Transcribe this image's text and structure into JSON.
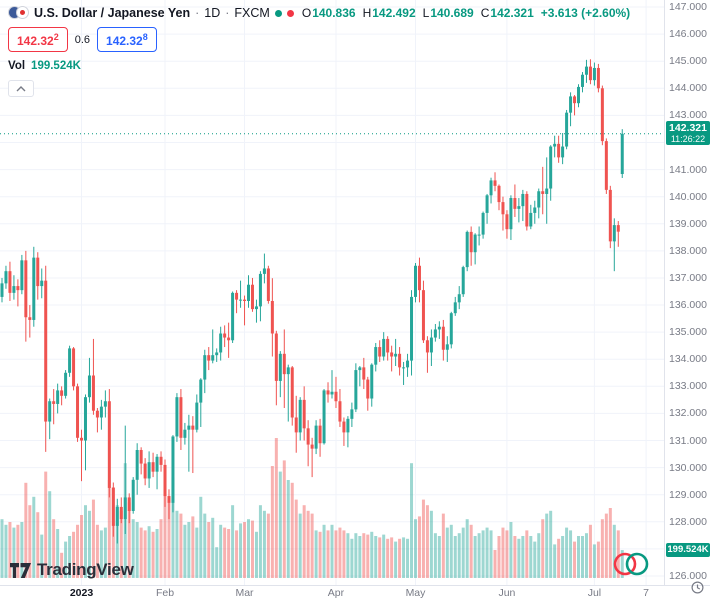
{
  "header": {
    "symbol_title": "U.S. Dollar / Japanese Yen",
    "separator": "·",
    "timeframe": "1D",
    "exchange": "FXCM",
    "ohlc": {
      "o_label": "O",
      "o": "140.836",
      "h_label": "H",
      "h": "142.492",
      "l_label": "L",
      "l": "140.689",
      "c_label": "C",
      "c": "142.321",
      "change": "+3.613 (+2.60%)"
    },
    "sell": {
      "main": "142.32",
      "sup": "2"
    },
    "spread": "0.6",
    "buy": {
      "main": "142.32",
      "sup": "8"
    },
    "vol_label": "Vol",
    "vol_value": "199.524K"
  },
  "badges": {
    "price": "142.321",
    "countdown": "11:26:22",
    "volume": "199.524K"
  },
  "logo": {
    "text": "TradingView"
  },
  "colors": {
    "up": "#26a69a",
    "down": "#ef5350",
    "up_text": "#089981",
    "sell": "#f23645",
    "buy": "#2962ff",
    "grid": "#f0f3fa",
    "axis_text": "#787b86",
    "badge": "#089981"
  },
  "chart_data": {
    "type": "candlestick",
    "title": "U.S. Dollar / Japanese Yen, 1D, FXCM",
    "price_axis": {
      "min": 126,
      "max": 147,
      "step": 1,
      "decimals": 3
    },
    "x_ticks": [
      {
        "i": 20,
        "label": "2023",
        "major": true
      },
      {
        "i": 41,
        "label": "Feb"
      },
      {
        "i": 61,
        "label": "Mar"
      },
      {
        "i": 84,
        "label": "Apr"
      },
      {
        "i": 104,
        "label": "May"
      },
      {
        "i": 127,
        "label": "Jun"
      },
      {
        "i": 149,
        "label": "Jul"
      },
      {
        "i": 162,
        "label": "7"
      }
    ],
    "right_margin_bars": 10,
    "current_price": 142.321,
    "countdown": "11:26:22",
    "last_volume_k": 199.524,
    "volume_unit": "K",
    "candles": [
      [
        136.3,
        137.0,
        136.1,
        136.8,
        420
      ],
      [
        136.8,
        137.45,
        136.6,
        137.25,
        380
      ],
      [
        137.25,
        137.6,
        136.15,
        136.45,
        400
      ],
      [
        136.45,
        137.1,
        136.2,
        136.7,
        360
      ],
      [
        136.7,
        136.95,
        135.95,
        136.55,
        380
      ],
      [
        136.55,
        137.85,
        136.4,
        137.65,
        400
      ],
      [
        137.65,
        138.0,
        134.65,
        135.55,
        680
      ],
      [
        135.55,
        136.0,
        134.8,
        135.45,
        520
      ],
      [
        135.45,
        138.15,
        135.2,
        137.75,
        580
      ],
      [
        137.75,
        137.95,
        136.2,
        136.7,
        470
      ],
      [
        136.7,
        137.35,
        136.25,
        136.9,
        310
      ],
      [
        136.9,
        137.45,
        130.58,
        131.7,
        760
      ],
      [
        131.7,
        132.55,
        131.05,
        132.45,
        620
      ],
      [
        132.45,
        132.9,
        131.6,
        132.35,
        420
      ],
      [
        132.35,
        133.1,
        132.0,
        132.85,
        350
      ],
      [
        132.85,
        133.0,
        132.3,
        132.65,
        180
      ],
      [
        132.65,
        133.6,
        132.55,
        133.5,
        260
      ],
      [
        133.5,
        134.5,
        133.35,
        134.4,
        300
      ],
      [
        134.4,
        134.45,
        132.85,
        133.0,
        330
      ],
      [
        133.0,
        133.1,
        130.95,
        131.1,
        380
      ],
      [
        131.1,
        131.4,
        129.5,
        131.0,
        450
      ],
      [
        131.0,
        132.7,
        129.9,
        132.6,
        520
      ],
      [
        132.6,
        134.05,
        132.4,
        133.4,
        480
      ],
      [
        133.4,
        134.75,
        131.95,
        132.1,
        560
      ],
      [
        132.1,
        132.2,
        131.3,
        131.85,
        380
      ],
      [
        131.85,
        132.5,
        131.4,
        132.25,
        340
      ],
      [
        132.25,
        132.85,
        131.85,
        132.45,
        360
      ],
      [
        132.45,
        132.9,
        128.9,
        129.25,
        700
      ],
      [
        129.25,
        129.45,
        127.45,
        127.85,
        650
      ],
      [
        127.85,
        128.85,
        127.2,
        128.55,
        520
      ],
      [
        128.55,
        128.9,
        127.95,
        128.1,
        480
      ],
      [
        128.1,
        131.55,
        127.55,
        128.9,
        820
      ],
      [
        128.9,
        129.05,
        127.95,
        128.4,
        540
      ],
      [
        128.4,
        129.65,
        128.3,
        129.55,
        420
      ],
      [
        129.55,
        130.9,
        129.0,
        130.65,
        400
      ],
      [
        130.65,
        130.75,
        129.75,
        130.15,
        360
      ],
      [
        130.15,
        130.35,
        129.35,
        129.6,
        340
      ],
      [
        129.6,
        130.6,
        129.25,
        130.2,
        370
      ],
      [
        130.2,
        130.55,
        129.65,
        129.85,
        330
      ],
      [
        129.85,
        130.5,
        129.2,
        130.4,
        350
      ],
      [
        130.4,
        130.6,
        129.85,
        130.1,
        420
      ],
      [
        130.1,
        130.3,
        128.55,
        128.95,
        620
      ],
      [
        128.95,
        129.2,
        128.1,
        128.7,
        540
      ],
      [
        128.7,
        131.2,
        128.35,
        131.15,
        720
      ],
      [
        131.15,
        132.75,
        130.95,
        132.6,
        480
      ],
      [
        132.6,
        132.9,
        130.65,
        131.1,
        460
      ],
      [
        131.1,
        131.65,
        130.85,
        131.4,
        380
      ],
      [
        131.4,
        131.95,
        129.85,
        131.55,
        400
      ],
      [
        131.55,
        131.9,
        129.8,
        131.4,
        440
      ],
      [
        131.4,
        132.7,
        131.3,
        132.4,
        360
      ],
      [
        132.4,
        133.3,
        131.5,
        133.25,
        580
      ],
      [
        133.25,
        134.35,
        132.75,
        134.15,
        460
      ],
      [
        134.15,
        134.45,
        133.6,
        133.95,
        400
      ],
      [
        133.95,
        135.1,
        133.85,
        134.15,
        430
      ],
      [
        134.15,
        134.4,
        133.9,
        134.25,
        220
      ],
      [
        134.25,
        135.2,
        133.95,
        134.95,
        380
      ],
      [
        134.95,
        135.25,
        134.45,
        134.8,
        360
      ],
      [
        134.8,
        135.35,
        134.05,
        134.7,
        350
      ],
      [
        134.7,
        136.5,
        134.6,
        136.45,
        520
      ],
      [
        136.45,
        136.55,
        135.7,
        136.2,
        340
      ],
      [
        136.2,
        136.9,
        135.9,
        136.2,
        390
      ],
      [
        136.2,
        136.35,
        135.25,
        136.15,
        400
      ],
      [
        136.15,
        137.1,
        135.9,
        136.75,
        420
      ],
      [
        136.75,
        137.0,
        135.75,
        135.85,
        410
      ],
      [
        135.85,
        136.2,
        135.35,
        135.95,
        330
      ],
      [
        135.95,
        137.25,
        135.4,
        137.15,
        520
      ],
      [
        137.15,
        137.9,
        136.8,
        137.35,
        480
      ],
      [
        137.35,
        137.45,
        136.05,
        136.15,
        460
      ],
      [
        136.15,
        136.99,
        134.1,
        134.95,
        800
      ],
      [
        134.95,
        135.05,
        132.3,
        133.2,
        1000
      ],
      [
        133.2,
        134.3,
        132.6,
        134.2,
        760
      ],
      [
        134.2,
        135.1,
        132.2,
        133.45,
        840
      ],
      [
        133.45,
        133.8,
        131.7,
        133.7,
        700
      ],
      [
        133.7,
        133.75,
        131.55,
        131.85,
        680
      ],
      [
        131.85,
        132.65,
        130.55,
        131.3,
        560
      ],
      [
        131.3,
        132.6,
        131.0,
        132.5,
        460
      ],
      [
        132.5,
        133.0,
        131.0,
        131.45,
        520
      ],
      [
        131.45,
        131.75,
        130.05,
        130.85,
        480
      ],
      [
        130.85,
        131.1,
        129.65,
        130.7,
        460
      ],
      [
        130.7,
        131.75,
        130.5,
        131.55,
        340
      ],
      [
        131.55,
        131.8,
        130.4,
        130.9,
        330
      ],
      [
        130.9,
        132.9,
        130.85,
        132.85,
        380
      ],
      [
        132.85,
        133.15,
        132.4,
        132.7,
        340
      ],
      [
        132.7,
        133.6,
        132.55,
        132.8,
        380
      ],
      [
        132.8,
        133.35,
        132.2,
        132.45,
        340
      ],
      [
        132.45,
        132.9,
        131.5,
        131.7,
        360
      ],
      [
        131.7,
        131.85,
        130.8,
        131.3,
        340
      ],
      [
        131.3,
        131.9,
        130.75,
        131.8,
        320
      ],
      [
        131.8,
        132.4,
        131.5,
        132.15,
        280
      ],
      [
        132.15,
        133.85,
        132.05,
        133.6,
        320
      ],
      [
        133.6,
        133.75,
        133.0,
        133.7,
        300
      ],
      [
        133.7,
        134.05,
        132.9,
        133.25,
        320
      ],
      [
        133.25,
        133.35,
        132.1,
        132.55,
        310
      ],
      [
        132.55,
        133.85,
        132.25,
        133.8,
        330
      ],
      [
        133.8,
        134.6,
        133.55,
        134.45,
        300
      ],
      [
        134.45,
        134.7,
        133.9,
        134.1,
        290
      ],
      [
        134.1,
        135.0,
        133.95,
        134.75,
        310
      ],
      [
        134.75,
        134.85,
        133.95,
        134.25,
        280
      ],
      [
        134.25,
        134.5,
        133.55,
        134.1,
        290
      ],
      [
        134.1,
        134.75,
        133.75,
        134.2,
        260
      ],
      [
        134.2,
        134.45,
        133.4,
        133.7,
        280
      ],
      [
        133.7,
        133.9,
        133.05,
        133.7,
        290
      ],
      [
        133.7,
        134.2,
        133.35,
        133.95,
        280
      ],
      [
        133.95,
        136.55,
        133.4,
        136.3,
        820
      ],
      [
        136.3,
        137.55,
        136.1,
        137.45,
        420
      ],
      [
        137.45,
        137.75,
        136.1,
        136.55,
        440
      ],
      [
        136.55,
        136.9,
        134.6,
        134.7,
        560
      ],
      [
        134.7,
        134.85,
        133.5,
        134.25,
        520
      ],
      [
        134.25,
        135.1,
        133.75,
        134.8,
        480
      ],
      [
        134.8,
        135.3,
        134.65,
        135.1,
        320
      ],
      [
        135.1,
        135.4,
        134.75,
        135.2,
        300
      ],
      [
        135.2,
        135.45,
        133.95,
        134.35,
        460
      ],
      [
        134.35,
        134.85,
        133.9,
        134.55,
        360
      ],
      [
        134.55,
        135.75,
        134.4,
        135.7,
        380
      ],
      [
        135.7,
        136.3,
        135.6,
        136.1,
        300
      ],
      [
        136.1,
        136.7,
        135.85,
        136.4,
        320
      ],
      [
        136.4,
        137.45,
        136.3,
        137.4,
        360
      ],
      [
        137.4,
        138.75,
        137.25,
        138.7,
        420
      ],
      [
        138.7,
        138.9,
        137.45,
        137.95,
        380
      ],
      [
        137.95,
        138.65,
        137.5,
        138.6,
        300
      ],
      [
        138.6,
        138.9,
        138.2,
        138.6,
        320
      ],
      [
        138.6,
        139.45,
        138.45,
        139.4,
        340
      ],
      [
        139.4,
        140.1,
        139.0,
        140.05,
        360
      ],
      [
        140.05,
        140.7,
        139.75,
        140.6,
        340
      ],
      [
        140.6,
        140.9,
        140.2,
        140.4,
        200
      ],
      [
        140.4,
        140.45,
        139.5,
        139.8,
        300
      ],
      [
        139.8,
        140.0,
        138.75,
        139.35,
        360
      ],
      [
        139.35,
        139.5,
        138.45,
        138.8,
        340
      ],
      [
        138.8,
        140.05,
        138.4,
        139.95,
        400
      ],
      [
        139.95,
        140.45,
        139.25,
        139.55,
        300
      ],
      [
        139.55,
        139.95,
        139.05,
        139.65,
        280
      ],
      [
        139.65,
        140.25,
        139.1,
        140.1,
        300
      ],
      [
        140.1,
        140.2,
        138.75,
        138.9,
        340
      ],
      [
        138.9,
        139.7,
        138.8,
        139.4,
        300
      ],
      [
        139.4,
        139.85,
        139.0,
        139.6,
        260
      ],
      [
        139.6,
        140.3,
        139.2,
        140.2,
        320
      ],
      [
        140.2,
        141.1,
        139.35,
        140.1,
        420
      ],
      [
        140.1,
        141.45,
        139.0,
        140.3,
        460
      ],
      [
        140.3,
        141.9,
        139.85,
        141.85,
        480
      ],
      [
        141.85,
        142.25,
        141.45,
        141.95,
        240
      ],
      [
        141.95,
        142.25,
        141.25,
        141.45,
        280
      ],
      [
        141.45,
        142.35,
        141.2,
        141.85,
        300
      ],
      [
        141.85,
        143.2,
        141.75,
        143.1,
        360
      ],
      [
        143.1,
        143.85,
        142.6,
        143.7,
        340
      ],
      [
        143.7,
        143.75,
        143.0,
        143.45,
        260
      ],
      [
        143.45,
        144.15,
        143.3,
        144.05,
        300
      ],
      [
        144.05,
        144.6,
        143.85,
        144.5,
        300
      ],
      [
        144.5,
        145.05,
        144.2,
        144.8,
        320
      ],
      [
        144.8,
        145.07,
        144.15,
        144.3,
        380
      ],
      [
        144.3,
        144.95,
        144.1,
        144.75,
        240
      ],
      [
        144.75,
        144.9,
        143.85,
        144.0,
        260
      ],
      [
        144.0,
        144.1,
        141.9,
        142.05,
        420
      ],
      [
        142.05,
        142.15,
        140.1,
        140.25,
        460
      ],
      [
        140.25,
        140.4,
        138.1,
        138.35,
        500
      ],
      [
        138.35,
        139.2,
        137.25,
        138.95,
        380
      ],
      [
        138.95,
        139.1,
        138.15,
        138.708,
        340
      ],
      [
        140.836,
        142.492,
        140.689,
        142.321,
        199.524
      ]
    ]
  }
}
